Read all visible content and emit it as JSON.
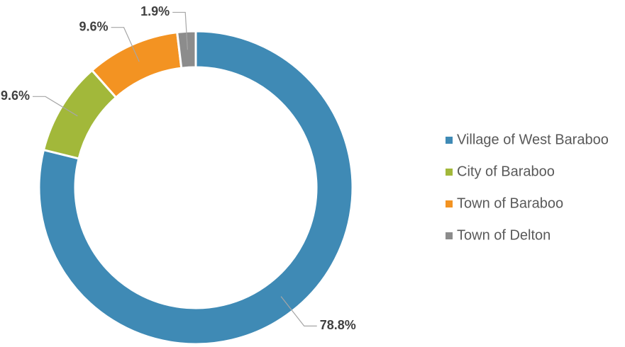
{
  "chart_data": {
    "type": "donut",
    "categories": [
      "Village of West Baraboo",
      "City of Baraboo",
      "Town of Baraboo",
      "Town of Delton"
    ],
    "values": [
      78.8,
      9.6,
      9.6,
      1.9
    ],
    "value_labels": [
      "78.8%",
      "9.6%",
      "9.6%",
      "1.9%"
    ],
    "colors": [
      "#3f8ab5",
      "#a2b83a",
      "#f39322",
      "#8c8c8c"
    ],
    "legend": "right"
  }
}
